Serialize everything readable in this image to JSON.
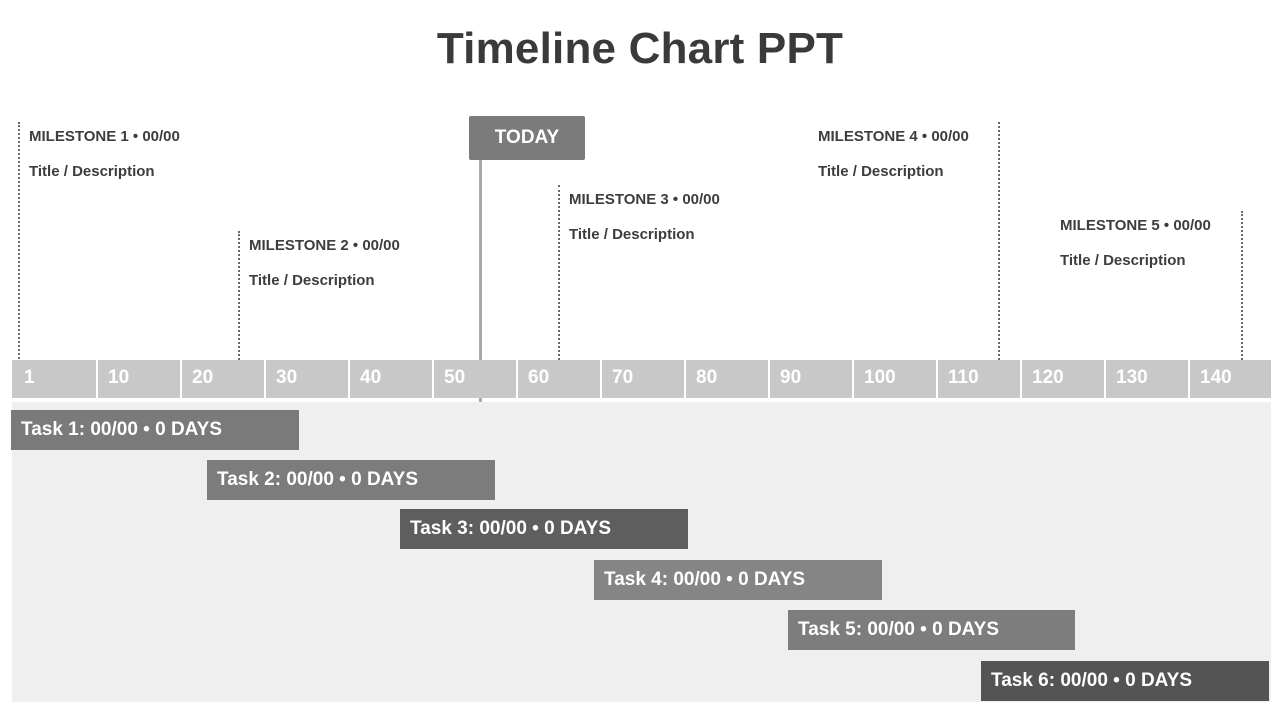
{
  "title": "Timeline Chart PPT",
  "today_label": "TODAY",
  "axis_ticks": [
    "1",
    "10",
    "20",
    "30",
    "40",
    "50",
    "60",
    "70",
    "80",
    "90",
    "100",
    "110",
    "120",
    "130",
    "140"
  ],
  "milestones": [
    {
      "label": "MILESTONE 1 • 00/00",
      "desc": "Title / Description"
    },
    {
      "label": "MILESTONE 2 • 00/00",
      "desc": "Title / Description"
    },
    {
      "label": "MILESTONE 3 • 00/00",
      "desc": "Title / Description"
    },
    {
      "label": "MILESTONE 4 • 00/00",
      "desc": "Title / Description"
    },
    {
      "label": "MILESTONE 5 • 00/00",
      "desc": "Title / Description"
    }
  ],
  "tasks": [
    {
      "label": "Task 1: 00/00 • 0 DAYS",
      "color": "#7a7a7a"
    },
    {
      "label": "Task 2: 00/00 • 0 DAYS",
      "color": "#7c7c7c"
    },
    {
      "label": "Task 3: 00/00 • 0 DAYS",
      "color": "#5e5e5e"
    },
    {
      "label": "Task 4: 00/00 • 0 DAYS",
      "color": "#858585"
    },
    {
      "label": "Task 5: 00/00 • 0 DAYS",
      "color": "#7d7d7d"
    },
    {
      "label": "Task 6: 00/00 • 0 DAYS",
      "color": "#545454"
    }
  ],
  "colors": {
    "axis": "#c8c8c8",
    "task_area": "#efefef",
    "today": "#7b7b7b",
    "text": "#3d3d3d"
  }
}
